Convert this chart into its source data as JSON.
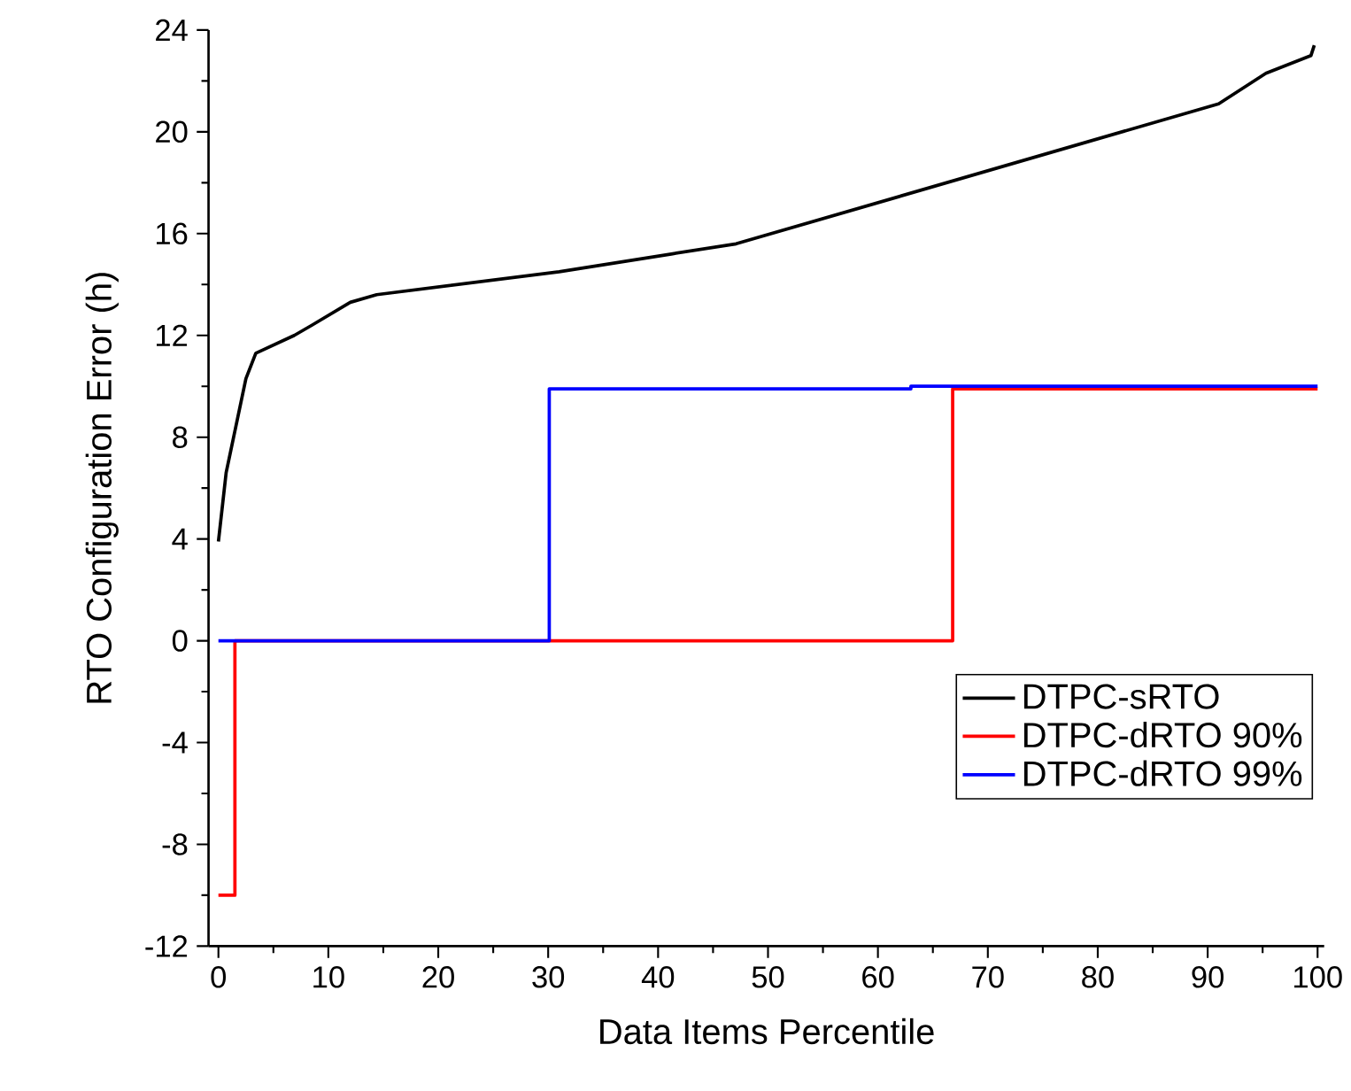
{
  "chart_data": {
    "type": "line",
    "xlabel": "Data Items Percentile",
    "ylabel": "RTO Configuration Error (h)",
    "xlim": [
      -0.9,
      100.6
    ],
    "ylim": [
      -12,
      24
    ],
    "xticks": [
      0,
      10,
      20,
      30,
      40,
      50,
      60,
      70,
      80,
      90,
      100
    ],
    "yticks": [
      -12,
      -8,
      -4,
      0,
      4,
      8,
      12,
      16,
      20,
      24
    ],
    "grid": false,
    "legend": "bottom right",
    "line_style": "solid",
    "marker": "none",
    "series": [
      {
        "name": "DTPC-sRTO",
        "color": "#000000",
        "x": [
          0,
          0.7,
          2.5,
          3.4,
          6.9,
          8.5,
          12,
          14.4,
          31,
          41.2,
          47.1,
          91,
          95.3,
          99.4,
          99.7
        ],
        "values": [
          3.9,
          6.6,
          10.3,
          11.3,
          12,
          12.4,
          13.3,
          13.6,
          14.5,
          15.2,
          15.6,
          21.1,
          22.3,
          23,
          23.4
        ]
      },
      {
        "name": "DTPC-dRTO 90%",
        "color": "#ff0000",
        "type": "step",
        "x": [
          0,
          1.5,
          66.8,
          100
        ],
        "values": [
          -10,
          0,
          9.9,
          9.9
        ]
      },
      {
        "name": "DTPC-dRTO 99%",
        "color": "#0000ff",
        "type": "step",
        "x": [
          0,
          30.1,
          63,
          100
        ],
        "values": [
          0,
          9.9,
          10,
          10
        ]
      }
    ]
  }
}
